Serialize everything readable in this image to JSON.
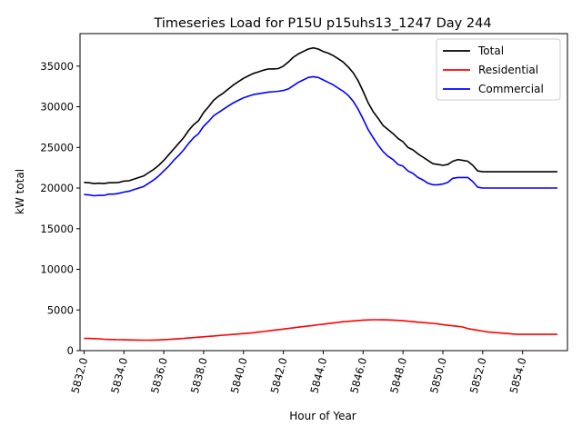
{
  "chart_data": {
    "type": "line",
    "title": "Timeseries Load for P15U p15uhs13_1247  Day 244",
    "xlabel": "Hour of Year",
    "ylabel": "kW total",
    "xlim": [
      5831.8,
      5856.25
    ],
    "ylim": [
      0,
      39000
    ],
    "grid": false,
    "legend_position": "top-right",
    "x_tick_values": [
      5832,
      5834,
      5836,
      5838,
      5840,
      5842,
      5844,
      5846,
      5848,
      5850,
      5852,
      5854
    ],
    "x_tick_labels": [
      "5832.0",
      "5834.0",
      "5836.0",
      "5838.0",
      "5840.0",
      "5842.0",
      "5844.0",
      "5846.0",
      "5848.0",
      "5850.0",
      "5852.0",
      "5854.0"
    ],
    "y_tick_values": [
      0,
      5000,
      10000,
      15000,
      20000,
      25000,
      30000,
      35000
    ],
    "y_tick_labels": [
      "0",
      "5000",
      "10000",
      "15000",
      "20000",
      "25000",
      "30000",
      "35000"
    ],
    "x": [
      5832.0,
      5832.25,
      5832.5,
      5832.75,
      5833.0,
      5833.25,
      5833.5,
      5833.75,
      5834.0,
      5834.25,
      5834.5,
      5834.75,
      5835.0,
      5835.25,
      5835.5,
      5835.75,
      5836.0,
      5836.25,
      5836.5,
      5836.75,
      5837.0,
      5837.25,
      5837.5,
      5837.75,
      5838.0,
      5838.25,
      5838.5,
      5838.75,
      5839.0,
      5839.25,
      5839.5,
      5839.75,
      5840.0,
      5840.25,
      5840.5,
      5840.75,
      5841.0,
      5841.25,
      5841.5,
      5841.75,
      5842.0,
      5842.25,
      5842.5,
      5842.75,
      5843.0,
      5843.25,
      5843.5,
      5843.75,
      5844.0,
      5844.25,
      5844.5,
      5844.75,
      5845.0,
      5845.25,
      5845.5,
      5845.75,
      5846.0,
      5846.25,
      5846.5,
      5846.75,
      5847.0,
      5847.25,
      5847.5,
      5847.75,
      5848.0,
      5848.25,
      5848.5,
      5848.75,
      5849.0,
      5849.25,
      5849.5,
      5849.75,
      5850.0,
      5850.25,
      5850.5,
      5850.75,
      5851.0,
      5851.25,
      5851.5,
      5851.75,
      5852.0,
      5852.25,
      5852.5,
      5852.75,
      5853.0,
      5853.25,
      5853.5,
      5853.75,
      5854.0,
      5854.25,
      5854.5,
      5854.75,
      5855.0,
      5855.25,
      5855.5,
      5855.75
    ],
    "series": [
      {
        "name": "Total",
        "color": "#000000",
        "values": [
          20700,
          20650,
          20550,
          20600,
          20550,
          20650,
          20650,
          20700,
          20850,
          20900,
          21100,
          21300,
          21500,
          21900,
          22300,
          22800,
          23400,
          24100,
          24800,
          25500,
          26200,
          27100,
          27800,
          28300,
          29300,
          30000,
          30800,
          31300,
          31700,
          32200,
          32700,
          33100,
          33500,
          33800,
          34100,
          34300,
          34500,
          34650,
          34650,
          34700,
          35000,
          35500,
          36100,
          36500,
          36800,
          37100,
          37250,
          37100,
          36800,
          36600,
          36300,
          35900,
          35500,
          34900,
          34200,
          33200,
          31900,
          30500,
          29400,
          28600,
          27700,
          27200,
          26700,
          26100,
          25700,
          25000,
          24700,
          24200,
          23800,
          23400,
          23000,
          22900,
          22800,
          22900,
          23300,
          23500,
          23400,
          23300,
          22800,
          22100,
          22000,
          22000,
          22000,
          22000,
          22000,
          22000,
          22000,
          22000,
          22000,
          22000,
          22000,
          22000,
          22000,
          22000,
          22000,
          22000
        ]
      },
      {
        "name": "Residential",
        "color": "#ff0000",
        "values": [
          1500,
          1500,
          1480,
          1450,
          1400,
          1380,
          1360,
          1340,
          1330,
          1320,
          1310,
          1300,
          1290,
          1280,
          1300,
          1320,
          1350,
          1380,
          1420,
          1460,
          1500,
          1550,
          1600,
          1650,
          1700,
          1750,
          1800,
          1850,
          1900,
          1950,
          2000,
          2050,
          2100,
          2150,
          2200,
          2280,
          2350,
          2430,
          2500,
          2580,
          2650,
          2730,
          2800,
          2880,
          2950,
          3030,
          3100,
          3180,
          3250,
          3330,
          3400,
          3480,
          3550,
          3600,
          3650,
          3700,
          3750,
          3780,
          3800,
          3800,
          3790,
          3780,
          3760,
          3720,
          3680,
          3620,
          3560,
          3500,
          3450,
          3400,
          3350,
          3280,
          3200,
          3120,
          3050,
          2980,
          2900,
          2700,
          2600,
          2500,
          2400,
          2300,
          2250,
          2200,
          2150,
          2100,
          2050,
          2000,
          2000,
          2000,
          2000,
          2000,
          2000,
          2000,
          2000,
          2000
        ]
      },
      {
        "name": "Commercial",
        "color": "#0000ff",
        "values": [
          19200,
          19150,
          19050,
          19100,
          19100,
          19250,
          19250,
          19350,
          19500,
          19600,
          19800,
          20000,
          20200,
          20600,
          21000,
          21500,
          22100,
          22700,
          23400,
          24000,
          24700,
          25500,
          26200,
          26700,
          27600,
          28200,
          28900,
          29300,
          29700,
          30100,
          30500,
          30800,
          31100,
          31300,
          31500,
          31600,
          31700,
          31800,
          31850,
          31900,
          32000,
          32200,
          32600,
          33000,
          33300,
          33600,
          33700,
          33600,
          33300,
          33000,
          32700,
          32300,
          31900,
          31400,
          30700,
          29700,
          28500,
          27200,
          26200,
          25300,
          24500,
          23900,
          23500,
          22900,
          22700,
          22100,
          21800,
          21300,
          21000,
          20600,
          20400,
          20400,
          20500,
          20700,
          21200,
          21300,
          21300,
          21300,
          20800,
          20100,
          20000,
          20000,
          20000,
          20000,
          20000,
          20000,
          20000,
          20000,
          20000,
          20000,
          20000,
          20000,
          20000,
          20000,
          20000,
          20000
        ]
      }
    ]
  }
}
